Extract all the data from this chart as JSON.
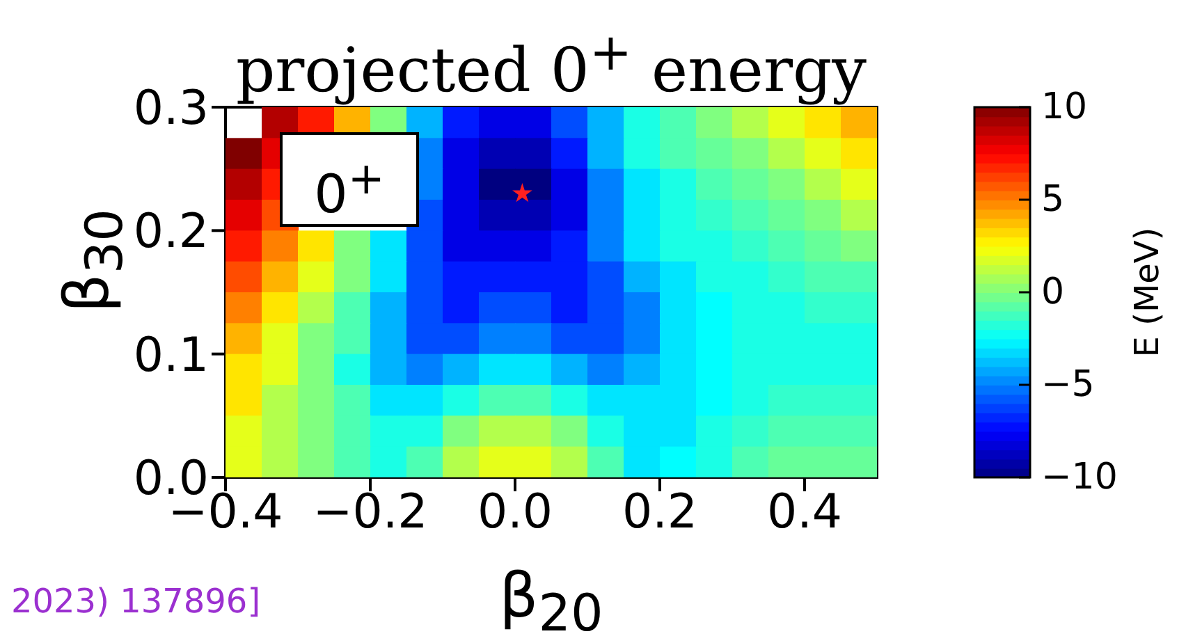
{
  "chart_data": {
    "type": "heatmap",
    "title": "projected 0$^{+}$ energy",
    "xlabel": "β$_{20}$",
    "ylabel": "β$_{30}$",
    "clabel": "E (MeV)",
    "xlim": [
      -0.4,
      0.5
    ],
    "ylim": [
      0,
      0.3
    ],
    "xticks": [
      -0.4,
      -0.2,
      {
        "value": 0,
        "label": "0.0"
      },
      0.2,
      0.4
    ],
    "yticks": [
      {
        "value": 0,
        "label": "0.0"
      },
      0.1,
      0.2,
      0.3
    ],
    "clim": [
      -10,
      10
    ],
    "cticks": [
      -10,
      -5,
      0,
      5,
      10
    ],
    "cells": [
      [
        null,
        9,
        7,
        4,
        0,
        -4,
        -7,
        -8,
        -8,
        -6,
        -4,
        -2,
        -1,
        0,
        1,
        2,
        3,
        4
      ],
      [
        10,
        8,
        null,
        null,
        null,
        -5,
        -8,
        -9,
        -9,
        -7,
        -4,
        -2,
        -1,
        -0.5,
        0,
        1,
        2,
        3
      ],
      [
        9,
        7,
        null,
        null,
        null,
        -5,
        -8,
        -10,
        -10,
        -8,
        -5,
        -3,
        -2,
        -1,
        -0.5,
        0,
        1,
        2
      ],
      [
        8,
        6,
        null,
        null,
        null,
        -6,
        -8,
        -9,
        -9,
        -8,
        -5,
        -3,
        -2,
        -1.5,
        -1,
        -0.5,
        0,
        1
      ],
      [
        7,
        5,
        3,
        0,
        -3,
        -6,
        -8,
        -8,
        -8,
        -7,
        -5,
        -3,
        -2,
        -2,
        -1.5,
        -1,
        -0.5,
        0
      ],
      [
        6,
        4,
        2,
        0,
        -3,
        -6,
        -7,
        -7,
        -7,
        -7,
        -6,
        -4,
        -3,
        -2,
        -2,
        -1.5,
        -1,
        -1
      ],
      [
        5,
        3,
        1,
        -1,
        -4,
        -6,
        -7,
        -6,
        -6,
        -7,
        -6,
        -5,
        -3,
        -2.5,
        -2,
        -2,
        -1.5,
        -1.5
      ],
      [
        4,
        2,
        0,
        -1,
        -4,
        -6,
        -6,
        -5,
        -5,
        -6,
        -6,
        -5,
        -3,
        -2.5,
        -2,
        -2,
        -2,
        -2
      ],
      [
        3,
        2,
        0,
        -2,
        -4,
        -5,
        -4,
        -3,
        -3,
        -4,
        -5,
        -4,
        -3,
        -2.5,
        -2,
        -2,
        -2,
        -2
      ],
      [
        3,
        1,
        0,
        -1,
        -3,
        -3,
        -2,
        -1,
        -1,
        -2,
        -3,
        -3,
        -3,
        -2.5,
        -2,
        -1.5,
        -1.5,
        -1.5
      ],
      [
        2,
        1,
        0,
        -1,
        -2,
        -2,
        0,
        1,
        1,
        0,
        -2,
        -3,
        -3,
        -2,
        -1.5,
        -1,
        -1,
        -1
      ],
      [
        2,
        1,
        0,
        -1,
        -2,
        -1,
        1,
        2,
        2,
        1,
        -1,
        -3,
        -2.5,
        -2,
        -1,
        -0.5,
        -0.5,
        -0.5
      ]
    ],
    "series": [
      {
        "type": "scatter",
        "x": [
          0.01
        ],
        "values": [
          0.23
        ],
        "color": "#ff2020",
        "marker": "star"
      }
    ],
    "annotations": [
      "0$^{+}$",
      "2023) 137896]"
    ]
  }
}
